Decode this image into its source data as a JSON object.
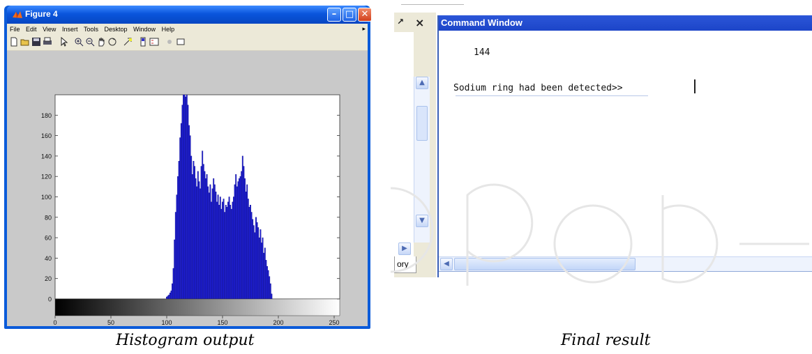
{
  "figure_window": {
    "title": "Figure 4",
    "menu": [
      "File",
      "Edit",
      "View",
      "Insert",
      "Tools",
      "Desktop",
      "Window",
      "Help"
    ],
    "toolbar_icons": [
      "new-file-icon",
      "open-file-icon",
      "save-icon",
      "print-icon",
      "pointer-icon",
      "zoom-in-icon",
      "zoom-out-icon",
      "pan-icon",
      "rotate-3d-icon",
      "data-cursor-icon",
      "colorbar-icon",
      "legend-icon",
      "hide-plot-tools-icon",
      "show-plot-tools-icon"
    ],
    "colors": {
      "titlebar": "#0a55dc",
      "bars": "#1f1fd8",
      "axes_bg": "#ffffff",
      "figure_bg": "#c9c9c9"
    }
  },
  "chart_data": {
    "type": "bar",
    "title": "",
    "xlabel": "",
    "ylabel": "",
    "xlim": [
      0,
      255
    ],
    "ylim": [
      0,
      200
    ],
    "xticks": [
      0,
      50,
      100,
      150,
      200,
      250
    ],
    "yticks": [
      0,
      20,
      40,
      60,
      80,
      100,
      120,
      140,
      160,
      180
    ],
    "x_start": 100,
    "values": [
      2,
      3,
      4,
      6,
      8,
      15,
      30,
      58,
      85,
      102,
      120,
      135,
      158,
      172,
      190,
      200,
      200,
      198,
      200,
      190,
      170,
      160,
      140,
      122,
      135,
      130,
      118,
      110,
      125,
      115,
      108,
      130,
      145,
      132,
      125,
      118,
      122,
      110,
      104,
      112,
      95,
      108,
      118,
      112,
      105,
      95,
      102,
      92,
      100,
      88,
      95,
      98,
      85,
      92,
      90,
      95,
      100,
      92,
      88,
      95,
      100,
      112,
      122,
      110,
      115,
      118,
      120,
      125,
      140,
      130,
      118,
      105,
      112,
      98,
      90,
      92,
      85,
      78,
      72,
      65,
      80,
      75,
      70,
      60,
      68,
      55,
      60,
      45,
      50,
      38,
      32,
      28,
      22,
      15,
      5
    ],
    "colorbar": "grayscale",
    "grid": false
  },
  "command_window": {
    "title": "Command Window",
    "lines": [
      "144",
      "Sodium ring had been detected>> "
    ],
    "side_tab": "ory"
  },
  "captions": {
    "left": "Histogram output",
    "right": "Final result"
  }
}
